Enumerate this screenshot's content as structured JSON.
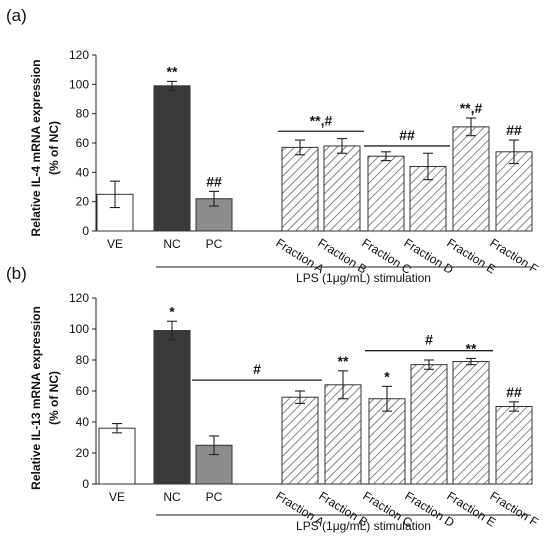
{
  "chart_data": [
    {
      "type": "bar",
      "panel_label": "(a)",
      "ylabel_line1": "Relative IL-4 mRNA expression",
      "ylabel_line2": "(% of NC)",
      "ylim": [
        0,
        120
      ],
      "yticks": [
        "0",
        "20",
        "40",
        "60",
        "80",
        "100",
        "120"
      ],
      "categories": [
        "VE",
        "NC",
        "PC",
        "Fraction A",
        "Fraction B",
        "Fraction C",
        "Fraction D",
        "Fraction E",
        "Fraction F"
      ],
      "values": [
        25,
        99,
        22,
        57,
        58,
        51,
        44,
        71,
        54
      ],
      "errors": [
        9,
        3,
        5,
        5,
        5,
        3,
        9,
        6,
        8
      ],
      "bar_styles": [
        "white",
        "dark",
        "gray",
        "hatch",
        "hatch",
        "hatch",
        "hatch",
        "hatch",
        "hatch"
      ],
      "annotations": [
        "",
        "**",
        "##",
        "",
        "",
        "",
        "",
        "**,#",
        "##"
      ],
      "group_annotations": [
        {
          "from": 3,
          "to": 4,
          "y": 68,
          "text": "**,#"
        },
        {
          "from": 5,
          "to": 6,
          "y": 58,
          "text": "##"
        }
      ],
      "xlabel": "LPS (1μg/mL) stimulation",
      "stim_from": 1,
      "stim_to": 8
    },
    {
      "type": "bar",
      "panel_label": "(b)",
      "ylabel_line1": "Relative IL-13 mRNA expression",
      "ylabel_line2": "(% of NC)",
      "ylim": [
        0,
        120
      ],
      "yticks": [
        "0",
        "20",
        "40",
        "60",
        "80",
        "100",
        "120"
      ],
      "categories": [
        "VE",
        "NC",
        "PC",
        "Fraction A",
        "Fraction B",
        "Fraction C",
        "Fraction D",
        "Fraction E",
        "Fraction F"
      ],
      "values": [
        36,
        99,
        25,
        56,
        64,
        55,
        77,
        79,
        50
      ],
      "errors": [
        3,
        6,
        6,
        4,
        9,
        8,
        3,
        2,
        3
      ],
      "bar_styles": [
        "white",
        "dark",
        "gray",
        "hatch",
        "hatch",
        "hatch",
        "hatch",
        "hatch",
        "hatch"
      ],
      "annotations": [
        "",
        "*",
        "",
        "",
        "**",
        "*",
        "",
        "**",
        "##"
      ],
      "group_annotations": [
        {
          "from": 2,
          "to": 3,
          "y": 67,
          "text": "#"
        },
        {
          "from": 5,
          "to": 7,
          "y": 86,
          "text": "#"
        }
      ],
      "xlabel": "LPS (1μg/mL) stimulation",
      "stim_from": 1,
      "stim_to": 8
    }
  ]
}
